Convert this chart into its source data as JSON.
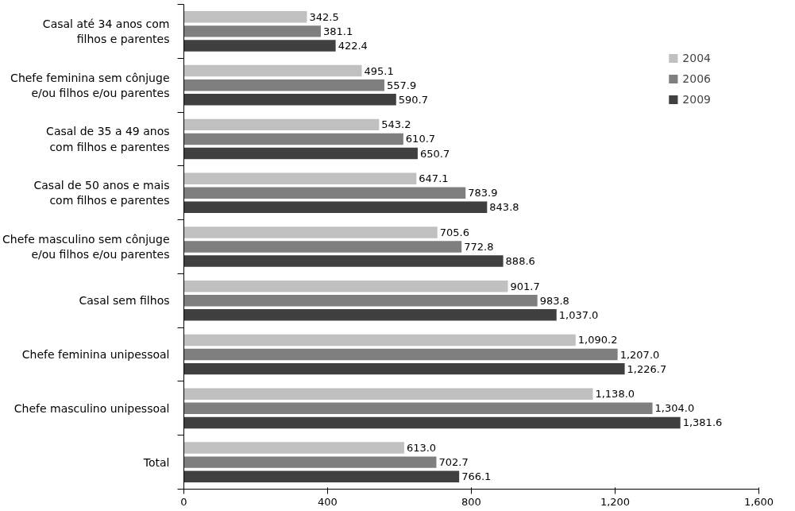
{
  "chart_data": {
    "type": "bar",
    "orientation": "horizontal",
    "categories": [
      "Casal até 34 anos com\nfilhos e parentes",
      "Chefe feminina sem cônjuge\ne/ou filhos e/ou parentes",
      "Casal de 35 a 49 anos\ncom filhos e parentes",
      "Casal de 50 anos e mais\ncom filhos e parentes",
      "Chefe masculino sem cônjuge\ne/ou filhos e/ou parentes",
      "Casal sem filhos",
      "Chefe feminina unipessoal",
      "Chefe masculino unipessoal",
      "Total"
    ],
    "series": [
      {
        "name": "2004",
        "color": "#c0c0c0",
        "values": [
          342.5,
          495.1,
          543.2,
          647.1,
          705.6,
          901.7,
          1090.2,
          1138.0,
          613.0
        ],
        "value_labels": [
          "342.5",
          "495.1",
          "543.2",
          "647.1",
          "705.6",
          "901.7",
          "1,090.2",
          "1,138.0",
          "613.0"
        ]
      },
      {
        "name": "2006",
        "color": "#7f7f7f",
        "values": [
          381.1,
          557.9,
          610.7,
          783.9,
          772.8,
          983.8,
          1207.0,
          1304.0,
          702.7
        ],
        "value_labels": [
          "381.1",
          "557.9",
          "610.7",
          "783.9",
          "772.8",
          "983.8",
          "1,207.0",
          "1,304.0",
          "702.7"
        ]
      },
      {
        "name": "2009",
        "color": "#404040",
        "values": [
          422.4,
          590.7,
          650.7,
          843.8,
          888.6,
          1037.0,
          1226.7,
          1381.6,
          766.1
        ],
        "value_labels": [
          "422.4",
          "590.7",
          "650.7",
          "843.8",
          "888.6",
          "1,037.0",
          "1,226.7",
          "1,381.6",
          "766.1"
        ]
      }
    ],
    "xlim": [
      0,
      1600
    ],
    "xticks": [
      0,
      400,
      800,
      {
        "value": 1200,
        "label": "1,200"
      },
      {
        "value": 1600,
        "label": "1,600"
      }
    ],
    "grid": false,
    "legend": "top right"
  }
}
